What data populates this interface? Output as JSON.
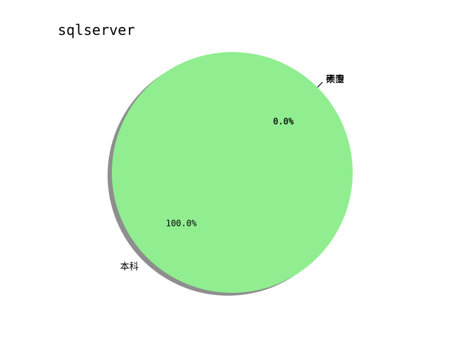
{
  "chart_data": {
    "type": "pie",
    "title": "sqlserver",
    "categories": [
      "本科",
      "硕士",
      "大专",
      "不限"
    ],
    "values": [
      100.0,
      0.0,
      0.0,
      0.0
    ],
    "percent_labels": [
      "100.0%",
      "0.0%",
      "0.0%",
      "0.0%"
    ],
    "colors": [
      "#90ee90",
      "#ffb6c1",
      "#87ceeb",
      "#f0e68c"
    ],
    "shadow": true,
    "startangle": 45,
    "grid": false,
    "legend": false
  }
}
